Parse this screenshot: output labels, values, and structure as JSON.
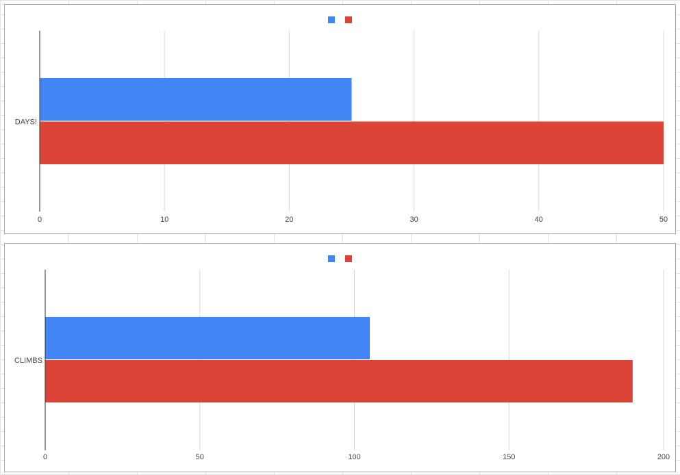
{
  "chart_data": [
    {
      "type": "bar",
      "orientation": "horizontal",
      "categories": [
        "DAYS!"
      ],
      "series": [
        {
          "values": [
            25
          ],
          "color": "#4285f4"
        },
        {
          "values": [
            50
          ],
          "color": "#db4437"
        }
      ],
      "xlim": [
        0,
        50
      ],
      "xticks": [
        "0",
        "10",
        "20",
        "30",
        "40",
        "50"
      ],
      "grid": true,
      "legend": "top-center"
    },
    {
      "type": "bar",
      "orientation": "horizontal",
      "categories": [
        "CLIMBS"
      ],
      "series": [
        {
          "values": [
            105
          ],
          "color": "#4285f4"
        },
        {
          "values": [
            190
          ],
          "color": "#db4437"
        }
      ],
      "xlim": [
        0,
        200
      ],
      "xticks": [
        "0",
        "50",
        "100",
        "150",
        "200"
      ],
      "grid": true,
      "legend": "top-center"
    }
  ]
}
